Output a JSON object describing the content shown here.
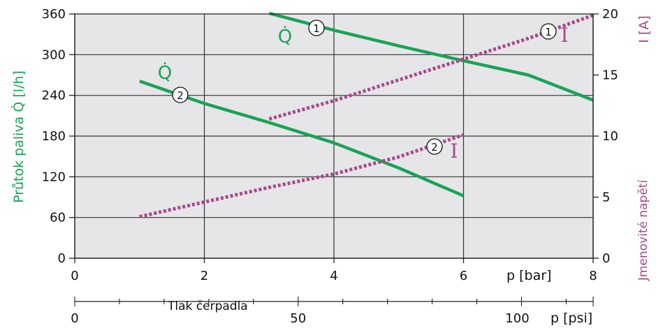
{
  "chart_data": {
    "type": "line",
    "colors": {
      "flow": "#1aa356",
      "current": "#a64a8c",
      "plot_bg": "#e6e6e8",
      "grid": "#333333"
    },
    "grid": true,
    "x": {
      "label": "p [bar]",
      "range": [
        0,
        8
      ],
      "ticks": [
        0,
        2,
        4,
        6,
        8
      ]
    },
    "x2": {
      "label": "p [psi]",
      "caption": "Tlak čerpadla",
      "range": [
        0,
        116.03
      ],
      "ticks": [
        0,
        50,
        100
      ]
    },
    "y_left": {
      "label_text": "Průtok paliva",
      "label_symbol": "Q̇",
      "label_unit": "[l/h]",
      "range": [
        0,
        360
      ],
      "ticks": [
        0,
        60,
        120,
        180,
        240,
        300,
        360
      ]
    },
    "y_right": {
      "label": "I [A]",
      "caption": "Jmenovité napětí",
      "range": [
        0,
        20
      ],
      "ticks": [
        0,
        5,
        10,
        15,
        20
      ]
    },
    "series": [
      {
        "id": "q1",
        "axis": "left",
        "style": "solid",
        "label": "Q̇",
        "marker": "1",
        "x": [
          3.0,
          4.0,
          5.0,
          6.0,
          7.0,
          8.0
        ],
        "y": [
          361,
          336,
          313,
          291,
          270,
          233
        ]
      },
      {
        "id": "q2",
        "axis": "left",
        "style": "solid",
        "label": "Q̇",
        "marker": "2",
        "x": [
          1.0,
          2.0,
          3.0,
          4.0,
          5.0,
          6.0
        ],
        "y": [
          261,
          228,
          200,
          170,
          133,
          92
        ]
      },
      {
        "id": "i1",
        "axis": "right",
        "style": "dashed",
        "label": "I",
        "marker": "1",
        "x": [
          3.0,
          4.0,
          5.0,
          6.0,
          7.0,
          8.0
        ],
        "y": [
          11.4,
          12.9,
          14.6,
          16.3,
          18.0,
          19.9
        ]
      },
      {
        "id": "i2",
        "axis": "right",
        "style": "dashed",
        "label": "I",
        "marker": "2",
        "x": [
          1.0,
          2.0,
          3.0,
          4.0,
          5.0,
          6.0
        ],
        "y": [
          3.4,
          4.6,
          5.8,
          6.9,
          8.3,
          10.1
        ]
      }
    ]
  }
}
